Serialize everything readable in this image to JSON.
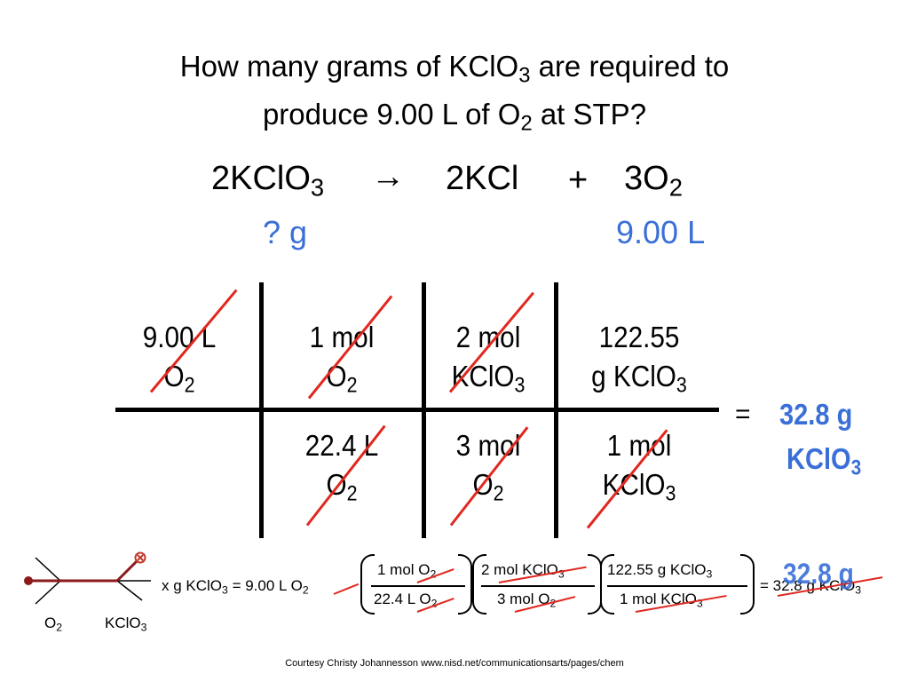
{
  "title": {
    "line1_a": "How many grams of KClO",
    "line1_sub": "3",
    "line1_b": " are required to",
    "line2_a": "produce 9.00 L of O",
    "line2_sub": "2",
    "line2_b": " at STP?"
  },
  "equation": {
    "reactant_a": "2KClO",
    "reactant_sub": "3",
    "arrow": "→",
    "product1": "2KCl",
    "plus": "+",
    "product2_a": "3O",
    "product2_sub": "2"
  },
  "givens": {
    "reactant_amount": "? g",
    "product_amount": "9.00 L"
  },
  "conversion_table": {
    "top": [
      {
        "l1": "9.00 L",
        "l2a": "O",
        "l2s": "2"
      },
      {
        "l1": "1 mol",
        "l2a": "O",
        "l2s": "2"
      },
      {
        "l1": "2 mol",
        "l2a": "KClO",
        "l2s": "3"
      },
      {
        "l1": "122.55",
        "l2a": "g KClO",
        "l2s": "3"
      }
    ],
    "bottom": [
      {
        "l1": "22.4 L",
        "l2a": "O",
        "l2s": "2"
      },
      {
        "l1": "3 mol",
        "l2a": "O",
        "l2s": "2"
      },
      {
        "l1": "1 mol",
        "l2a": "KClO",
        "l2s": "3"
      }
    ]
  },
  "result": {
    "equals": "=",
    "value": "32.8 g",
    "unit_a": "KClO",
    "unit_sub": "3"
  },
  "diagram": {
    "left_label_a": "O",
    "left_label_sub": "2",
    "right_label_a": "KClO",
    "right_label_sub": "3",
    "colors": {
      "line": "#8b1a1a",
      "node": "#c0392b"
    }
  },
  "formula": {
    "lhs_a": "x g KClO",
    "lhs_sub": "3",
    "lhs_b": " = 9.00 L O",
    "lhs_sub2": "2",
    "f1_num_a": "1 mol O",
    "f1_num_sub": "2",
    "f1_den_a": "22.4 L O",
    "f1_den_sub": "2",
    "f2_num_a": "2 mol KClO",
    "f2_num_sub": "3",
    "f2_den_a": "3 mol O",
    "f2_den_sub": "2",
    "f3_num_a": "122.55 g KClO",
    "f3_num_sub": "3",
    "f3_den_a": "1 mol KClO",
    "f3_den_sub": "3",
    "rhs_a": "= 32.8 g KClO",
    "rhs_sub": "3",
    "overlay": "32.8 g"
  },
  "credit": "Courtesy Christy Johannesson www.nisd.net/communicationsarts/pages/chem",
  "accent_colors": {
    "blue": "#3a6fd8",
    "red_strike": "#e0281f"
  }
}
